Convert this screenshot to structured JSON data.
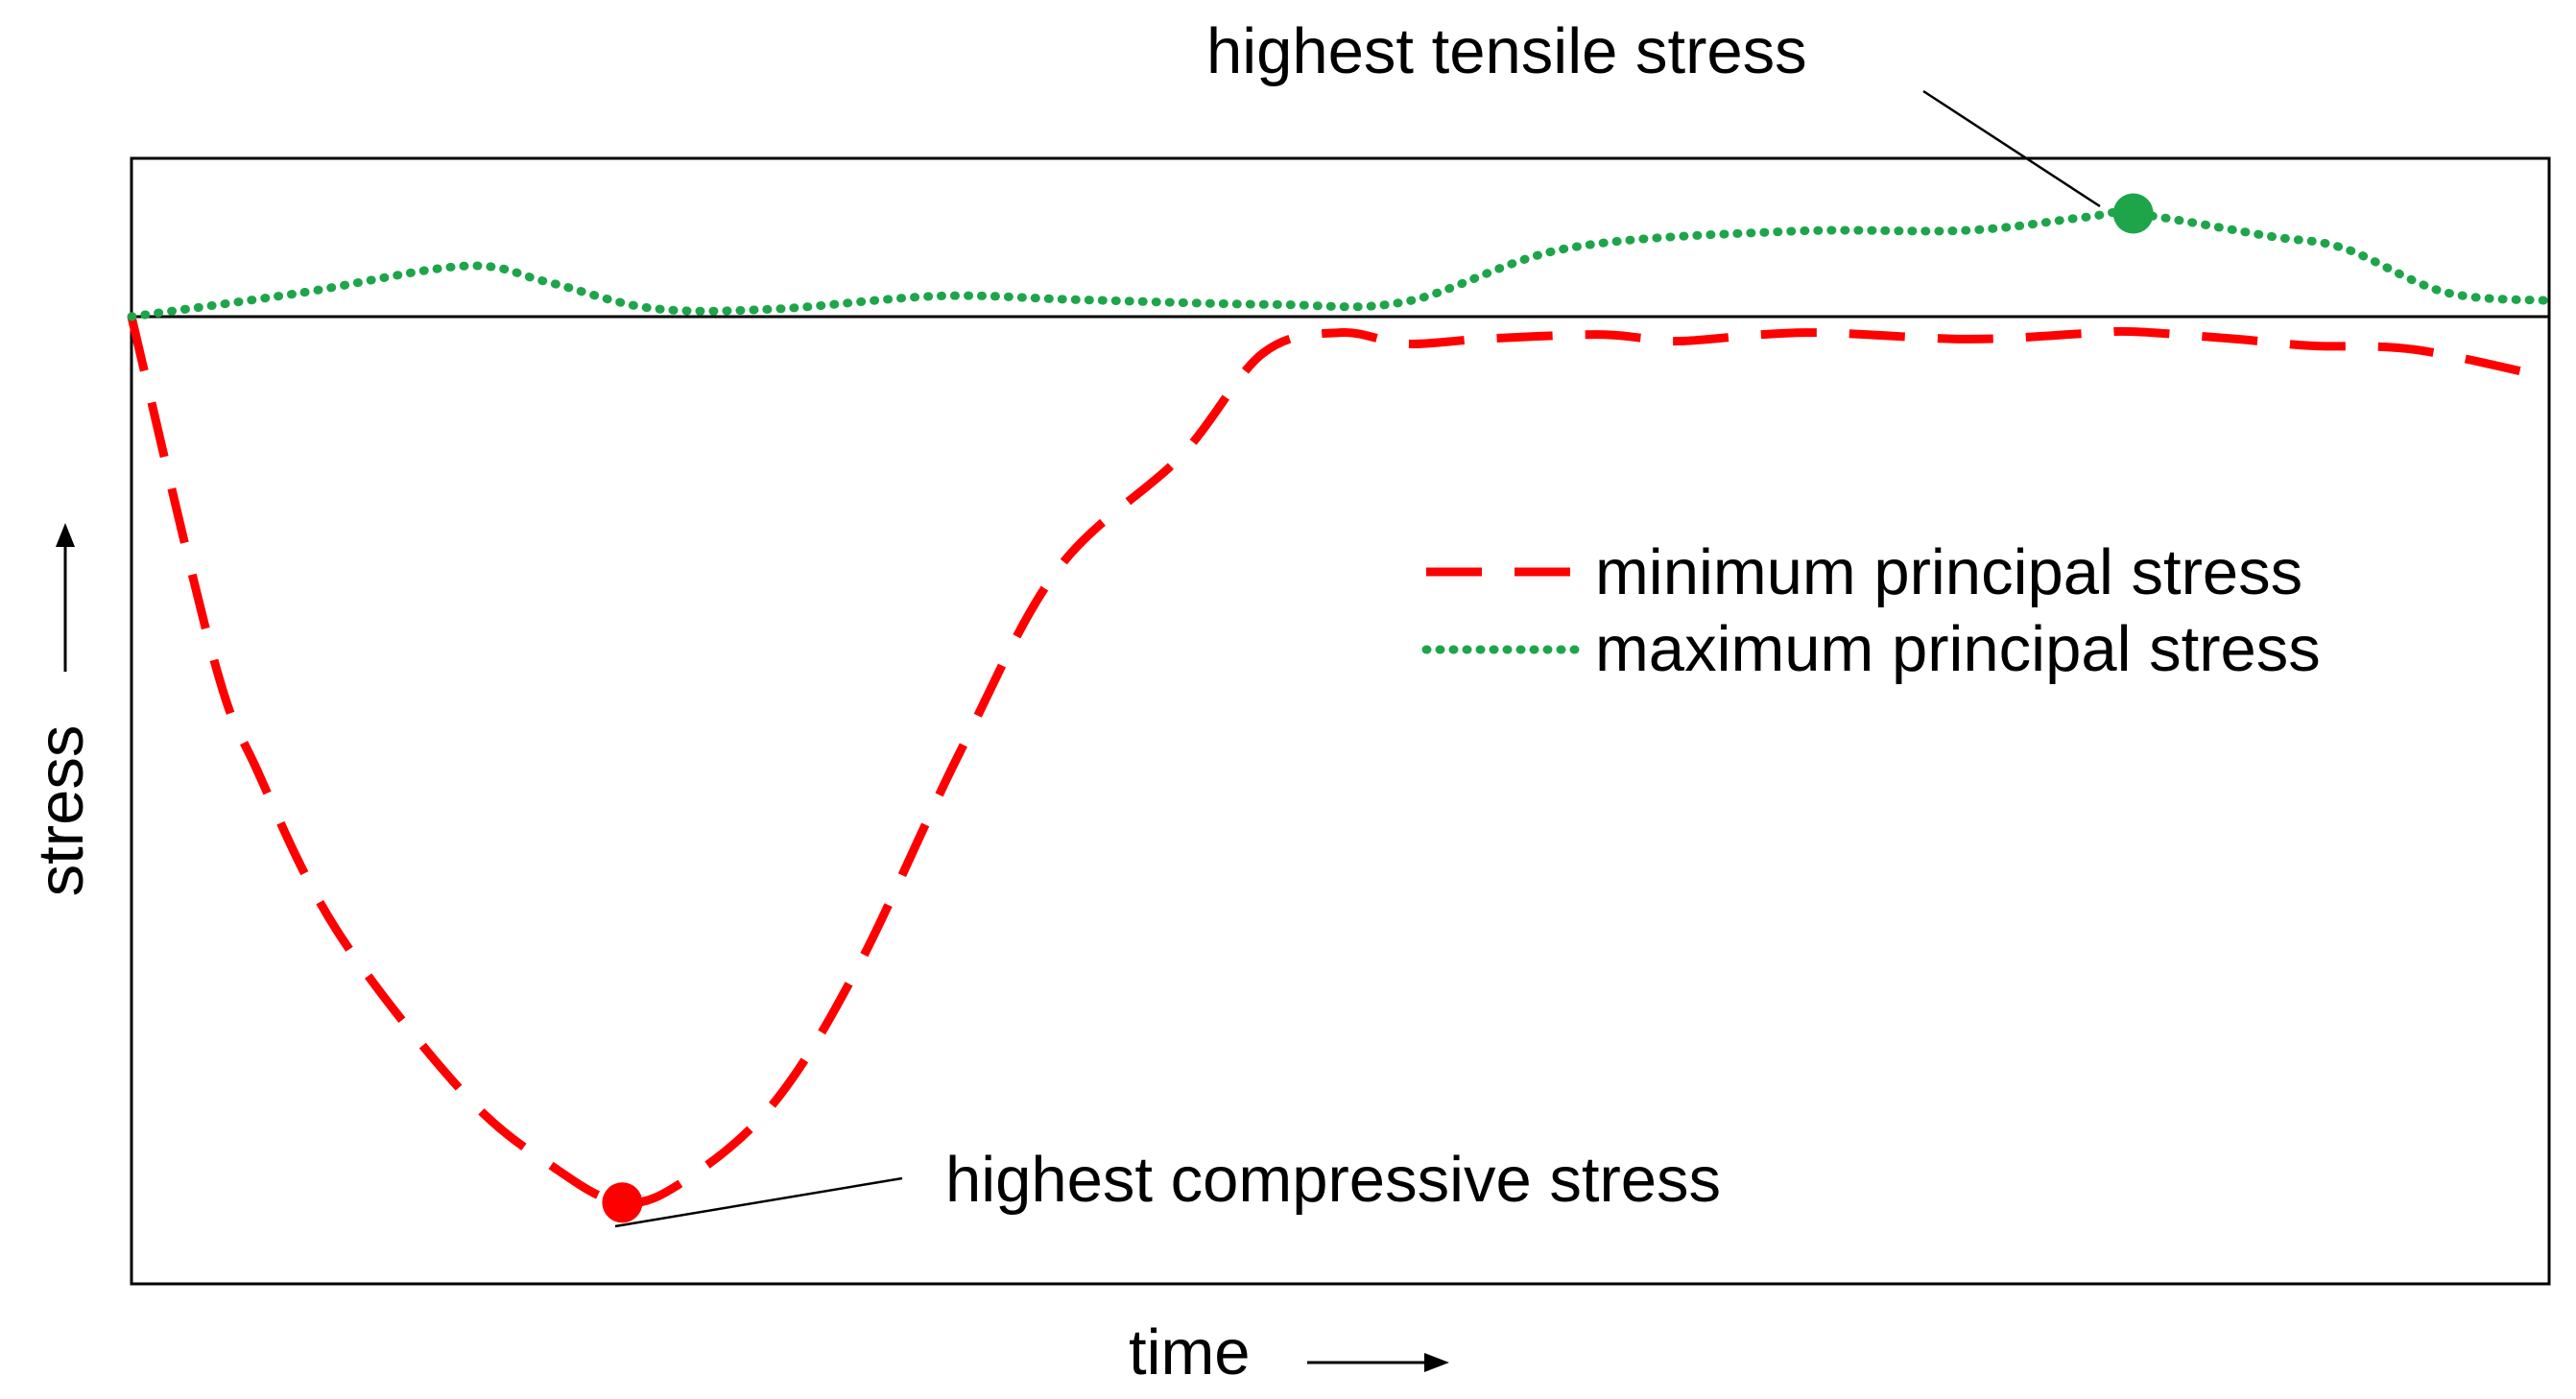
{
  "chart_data": {
    "type": "line",
    "title": "",
    "xlabel": "time",
    "ylabel": "stress",
    "x_arrow": "→",
    "y_arrow": "→",
    "xlim": [
      0,
      100
    ],
    "ylim": [
      -100,
      17
    ],
    "grid": false,
    "legend_position": "center-right",
    "zero_line": 0,
    "series": [
      {
        "name": "minimum principal stress",
        "style": "dashed",
        "color": "#ff0000",
        "x": [
          0,
          3.4,
          5.2,
          8.5,
          13.8,
          17.5,
          20.3,
          22.8,
          26.5,
          30.0,
          34.2,
          38.3,
          43.4,
          46.8,
          50.0,
          52.7,
          55.8,
          60.5,
          62.6,
          64.2,
          69.3,
          75.9,
          80.8,
          82.8,
          87.1,
          90.1,
          94.4,
          100
        ],
        "y": [
          0,
          -36.5,
          -48.4,
          -65.5,
          -83.0,
          -90.8,
          -94.5,
          -92.3,
          -84.1,
          -69.6,
          -46.8,
          -27.0,
          -14.9,
          -3.9,
          -1.7,
          -2.9,
          -2.4,
          -1.9,
          -2.3,
          -2.6,
          -1.7,
          -2.4,
          -1.8,
          -1.6,
          -2.4,
          -3.1,
          -3.5,
          -6.5
        ]
      },
      {
        "name": "maximum principal stress",
        "style": "dotted",
        "color": "#1ea54a",
        "x": [
          0,
          6.9,
          13.8,
          17.2,
          21.5,
          26.5,
          33.4,
          39.2,
          47.2,
          52.7,
          59.4,
          68.6,
          75.9,
          80.8,
          82.8,
          88.4,
          91.5,
          95.7,
          100
        ],
        "y": [
          0,
          2.5,
          5.4,
          3.7,
          0.9,
          0.8,
          2.2,
          1.8,
          1.3,
          1.6,
          7.3,
          9.1,
          9.2,
          10.6,
          11.0,
          8.6,
          7.3,
          2.6,
          1.7
        ]
      }
    ],
    "annotations": [
      {
        "text": "highest tensile stress",
        "series": "maximum principal stress",
        "x": 82.8,
        "y": 11.0,
        "marker_color": "#1ea54a"
      },
      {
        "text": "highest compressive stress",
        "series": "minimum principal stress",
        "x": 20.3,
        "y": -94.5,
        "marker_color": "#ff0000"
      }
    ]
  }
}
